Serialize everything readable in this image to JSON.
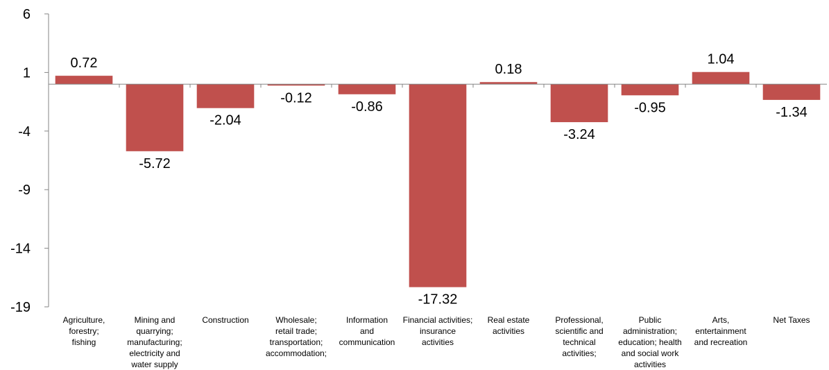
{
  "chart_data": {
    "type": "bar",
    "title": "",
    "xlabel": "",
    "ylabel": "",
    "ylim": [
      -19,
      6
    ],
    "yticks": [
      6,
      1,
      -4,
      -9,
      -14,
      -19
    ],
    "grid": false,
    "legend": "none",
    "bar_color": "#C0504D",
    "categories": [
      [
        "Agriculture,",
        "forestry;",
        "fishing"
      ],
      [
        "Mining and",
        "quarrying;",
        "manufacturing;",
        "electricity and",
        "water supply"
      ],
      [
        "Construction"
      ],
      [
        "Wholesale;",
        "retail trade;",
        "transportation;",
        "accommodation;"
      ],
      [
        "Information",
        "and",
        "communication"
      ],
      [
        "Financial activities;",
        "insurance",
        "activities"
      ],
      [
        "Real estate",
        "activities"
      ],
      [
        "Professional,",
        "scientific and",
        "technical",
        "activities;"
      ],
      [
        "Public",
        "administration;",
        "education; health",
        "and social work",
        "activities"
      ],
      [
        "Arts,",
        "entertainment",
        "and recreation"
      ],
      [
        "Net Taxes"
      ]
    ],
    "values": [
      0.72,
      -5.72,
      -2.04,
      -0.12,
      -0.86,
      -17.32,
      0.18,
      -3.24,
      -0.95,
      1.04,
      -1.34
    ],
    "data_labels": [
      "0.72",
      "-5.72",
      "-2.04",
      "-0.12",
      "-0.86",
      "-17.32",
      "0.18",
      "-3.24",
      "-0.95",
      "1.04",
      "-1.34"
    ]
  }
}
